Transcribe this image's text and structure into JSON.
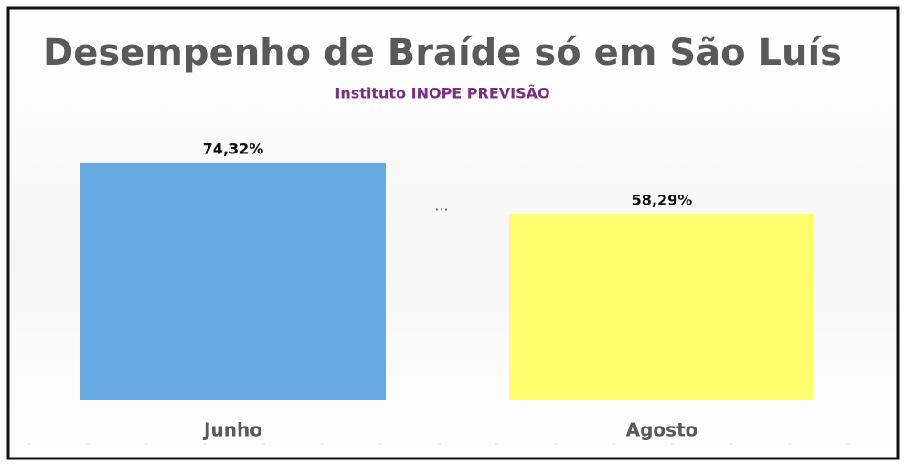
{
  "chart_data": {
    "type": "bar",
    "title": "Desempenho de Braíde só em São Luís",
    "subtitle": "Instituto INOPE PREVISÃO",
    "annotation": "...",
    "categories": [
      "Junho",
      "Agosto"
    ],
    "values": [
      74.32,
      58.29
    ],
    "value_labels": [
      "74,32%",
      "58,29%"
    ],
    "colors": [
      "#68aae4",
      "#ffff6e"
    ]
  }
}
